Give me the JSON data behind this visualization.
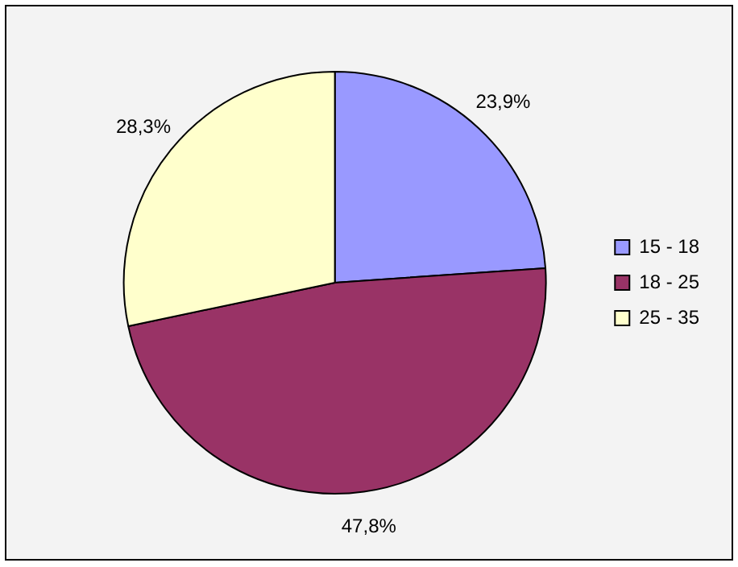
{
  "chart_data": {
    "type": "pie",
    "categories": [
      "15 - 18",
      "18 - 25",
      "25 - 35"
    ],
    "values": [
      23.9,
      47.8,
      28.3
    ],
    "colors": [
      "#9999ff",
      "#993366",
      "#ffffcc"
    ],
    "value_labels": [
      "23,9%",
      "47,8%",
      "28,3%"
    ],
    "legend": "right"
  }
}
